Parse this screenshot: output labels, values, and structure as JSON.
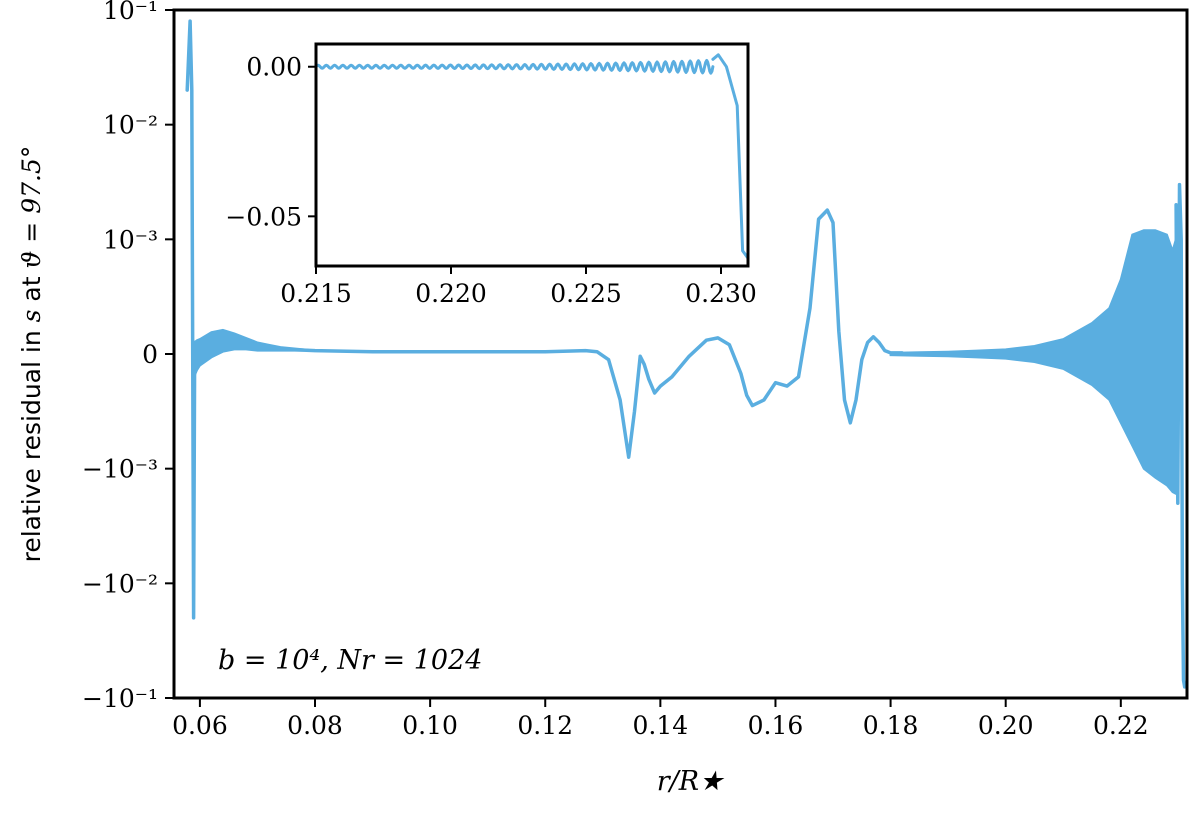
{
  "chart_data": {
    "type": "line",
    "series_color": "#5aaee0",
    "main": {
      "xlabel": "r/R★",
      "ylabel_prefix": "relative residual in ",
      "ylabel_var": "s",
      "ylabel_mid": " at ",
      "ylabel_angle": "ϑ = 97.5°",
      "annotation": "b = 10⁴, Nr = 1024",
      "xlim": [
        0.0555,
        0.2315
      ],
      "yscale": "symlog",
      "linthresh": 0.001,
      "ylim": [
        -0.1,
        0.1
      ],
      "xticks": [
        0.06,
        0.08,
        0.1,
        0.12,
        0.14,
        0.16,
        0.18,
        0.2,
        0.22
      ],
      "xtick_labels": [
        "0.06",
        "0.08",
        "0.10",
        "0.12",
        "0.14",
        "0.16",
        "0.18",
        "0.20",
        "0.22"
      ],
      "yticks": [
        -0.1,
        -0.01,
        -0.001,
        0,
        0.001,
        0.01,
        0.1
      ],
      "ytick_labels": [
        "−10⁻¹",
        "−10⁻²",
        "−10⁻³",
        "0",
        "10⁻³",
        "10⁻²",
        "10⁻¹"
      ],
      "curve": {
        "x": [
          0.0578,
          0.0583,
          0.0586,
          0.0589,
          0.0591,
          0.0595,
          0.06,
          0.062,
          0.064,
          0.066,
          0.07,
          0.075,
          0.08,
          0.09,
          0.1,
          0.11,
          0.12,
          0.127,
          0.129,
          0.131,
          0.133,
          0.1345,
          0.1355,
          0.1365,
          0.1372,
          0.138,
          0.139,
          0.14,
          0.142,
          0.145,
          0.148,
          0.15,
          0.152,
          0.154,
          0.155,
          0.156,
          0.158,
          0.16,
          0.162,
          0.164,
          0.166,
          0.1675,
          0.169,
          0.17,
          0.171,
          0.172,
          0.173,
          0.174,
          0.175,
          0.176,
          0.177,
          0.178,
          0.179,
          0.18,
          0.182
        ],
        "y": [
          0.02,
          0.08,
          0.02,
          -0.02,
          0.0001,
          0.0001,
          0.0001,
          0.00018,
          0.0002,
          0.00015,
          7e-05,
          4e-05,
          3e-05,
          2e-05,
          2e-05,
          2e-05,
          2e-05,
          3e-05,
          2e-05,
          -5e-05,
          -0.0004,
          -0.0009,
          -0.0005,
          -2e-05,
          -9e-05,
          -0.00022,
          -0.00034,
          -0.00028,
          -0.0002,
          -2e-05,
          0.00012,
          0.00014,
          8e-05,
          -0.00017,
          -0.00036,
          -0.00045,
          -0.0004,
          -0.00025,
          -0.00028,
          -0.0002,
          0.0004,
          0.0015,
          0.0018,
          0.0014,
          0.0002,
          -0.0004,
          -0.0006,
          -0.0004,
          -5e-05,
          0.0001,
          0.00015,
          0.0001,
          3e-05,
          1e-05,
          1e-05
        ]
      },
      "envelope_left": {
        "x": [
          0.059,
          0.0595,
          0.06,
          0.062,
          0.064,
          0.066,
          0.068,
          0.07,
          0.072,
          0.074,
          0.076,
          0.078,
          0.08
        ],
        "upper": [
          0.0001,
          0.00012,
          0.00013,
          0.00019,
          0.00021,
          0.00018,
          0.00014,
          0.0001,
          8e-05,
          6e-05,
          5e-05,
          4e-05,
          3e-05
        ],
        "lower": [
          -0.0002,
          -0.00014,
          -0.0001,
          -3e-05,
          2e-05,
          4e-05,
          4e-05,
          3e-05,
          3e-05,
          3e-05,
          3e-05,
          3e-05,
          3e-05
        ]
      },
      "envelope_right": {
        "x": [
          0.18,
          0.185,
          0.19,
          0.195,
          0.2,
          0.205,
          0.21,
          0.215,
          0.218,
          0.22,
          0.222,
          0.224,
          0.226,
          0.228,
          0.229,
          0.23
        ],
        "upper": [
          1e-05,
          1.5e-05,
          2e-05,
          3e-05,
          4e-05,
          7e-05,
          0.00013,
          0.00027,
          0.0004,
          0.00065,
          0.0011,
          0.0012,
          0.0012,
          0.0011,
          0.0009,
          0.0012
        ],
        "lower": [
          -1e-05,
          -1.5e-05,
          -2e-05,
          -3e-05,
          -4e-05,
          -7e-05,
          -0.00013,
          -0.00027,
          -0.0004,
          -0.0006,
          -0.0008,
          -0.001,
          -0.0012,
          -0.0014,
          -0.0016,
          -0.0017
        ]
      },
      "right_tail": {
        "x": [
          0.2296,
          0.2299,
          0.2302,
          0.2305,
          0.2307,
          0.2309,
          0.2311
        ],
        "y": [
          0.002,
          -0.002,
          0.003,
          0.001,
          -0.01,
          -0.07,
          -0.08
        ]
      }
    },
    "inset": {
      "xlim": [
        0.215,
        0.231
      ],
      "ylim": [
        -0.0666,
        0.0076
      ],
      "xticks": [
        0.215,
        0.22,
        0.225,
        0.23
      ],
      "xtick_labels": [
        "0.215",
        "0.220",
        "0.225",
        "0.230"
      ],
      "yticks": [
        0.0,
        -0.05
      ],
      "ytick_labels": [
        "0.00",
        "−0.05"
      ],
      "ripple": {
        "x_start": 0.215,
        "x_end": 0.2297,
        "cycles": 48,
        "amp_start": 0.0005,
        "amp_end": 0.0022
      },
      "tail": {
        "x": [
          0.2297,
          0.2299,
          0.2302,
          0.2306,
          0.2308,
          0.231
        ],
        "y": [
          0.0025,
          0.004,
          0.0,
          -0.013,
          -0.0615,
          -0.064
        ]
      }
    }
  }
}
